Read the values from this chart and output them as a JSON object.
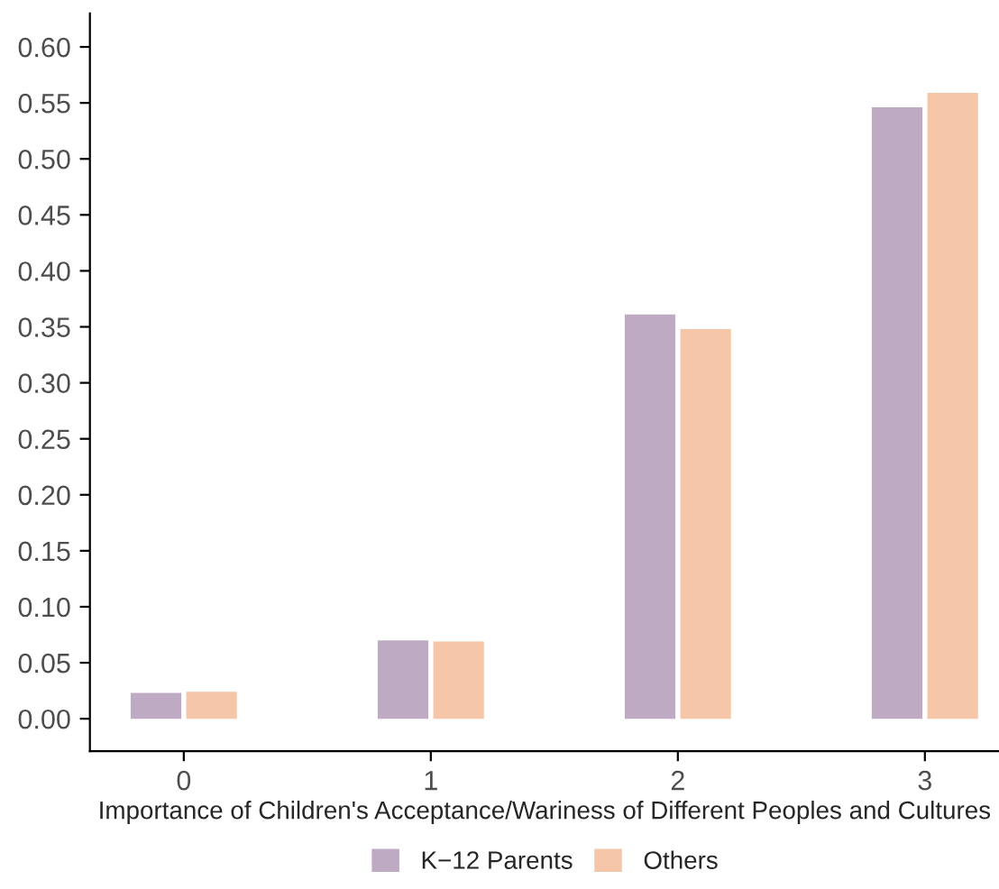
{
  "chart_data": {
    "type": "bar",
    "xlabel": "Importance of Children's Acceptance/Wariness of Different Peoples and Cultures",
    "categories": [
      "0",
      "1",
      "2",
      "3"
    ],
    "series": [
      {
        "name": "K−12 Parents",
        "color": "#bfaac4",
        "values": [
          0.023,
          0.07,
          0.361,
          0.546
        ]
      },
      {
        "name": "Others",
        "color": "#f6c6a8",
        "values": [
          0.024,
          0.069,
          0.348,
          0.559
        ]
      }
    ],
    "ylim": [
      -0.029,
      0.63
    ],
    "yticks": [
      {
        "value": 0,
        "label": "0.00"
      },
      {
        "value": 0.05,
        "label": "0.05"
      },
      {
        "value": 0.1,
        "label": "0.10"
      },
      {
        "value": 0.15,
        "label": "0.15"
      },
      {
        "value": 0.2,
        "label": "0.20"
      },
      {
        "value": 0.25,
        "label": "0.25"
      },
      {
        "value": 0.3,
        "label": "0.30"
      },
      {
        "value": 0.35,
        "label": "0.35"
      },
      {
        "value": 0.4,
        "label": "0.40"
      },
      {
        "value": 0.45,
        "label": "0.45"
      },
      {
        "value": 0.5,
        "label": "0.50"
      },
      {
        "value": 0.55,
        "label": "0.55"
      },
      {
        "value": 0.6,
        "label": "0.60"
      }
    ],
    "grid": false,
    "legend": "bottom"
  }
}
